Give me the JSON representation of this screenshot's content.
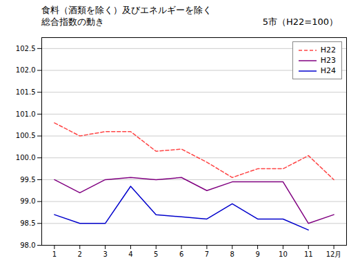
{
  "chart_data": {
    "type": "line",
    "title": "食料（酒類を除く）及びエネルギーを除く",
    "subtitle": "総合指数の動き",
    "annotations": [
      "5市（H22=100）"
    ],
    "x": [
      1,
      2,
      3,
      4,
      5,
      6,
      7,
      8,
      9,
      10,
      11,
      12
    ],
    "series": [
      {
        "name": "H22",
        "color": "#ff4444",
        "line_style": "dashed",
        "values": [
          100.8,
          100.5,
          100.6,
          100.6,
          100.15,
          100.2,
          99.9,
          99.55,
          99.75,
          99.75,
          100.05,
          99.5
        ]
      },
      {
        "name": "H23",
        "color": "#800080",
        "line_style": "solid",
        "values": [
          99.5,
          99.2,
          99.5,
          99.55,
          99.5,
          99.55,
          99.25,
          99.45,
          99.45,
          99.45,
          98.5,
          98.7
        ]
      },
      {
        "name": "H24",
        "color": "#0000cc",
        "line_style": "solid",
        "values": [
          98.7,
          98.5,
          98.5,
          99.35,
          98.7,
          98.65,
          98.6,
          98.95,
          98.6,
          98.6,
          98.35,
          null
        ]
      }
    ],
    "xlim": [
      0.5,
      12.5
    ],
    "xticks": [
      1,
      2,
      3,
      4,
      5,
      6,
      7,
      8,
      9,
      10,
      11,
      {
        "value": 12,
        "label": "12月"
      }
    ],
    "ylim": [
      98.0,
      102.75
    ],
    "yticks": [
      {
        "value": 98.0,
        "label": "98.0"
      },
      {
        "value": 98.5,
        "label": "98.5"
      },
      {
        "value": 99.0,
        "label": "99.0"
      },
      {
        "value": 99.5,
        "label": "99.5"
      },
      {
        "value": 100.0,
        "label": "100.0"
      },
      {
        "value": 100.5,
        "label": "100.5"
      },
      {
        "value": 101.0,
        "label": "101.0"
      },
      {
        "value": 101.5,
        "label": "101.5"
      },
      {
        "value": 102.0,
        "label": "102.0"
      },
      {
        "value": 102.5,
        "label": "102.5"
      }
    ],
    "grid": true,
    "legend": "upper right"
  }
}
